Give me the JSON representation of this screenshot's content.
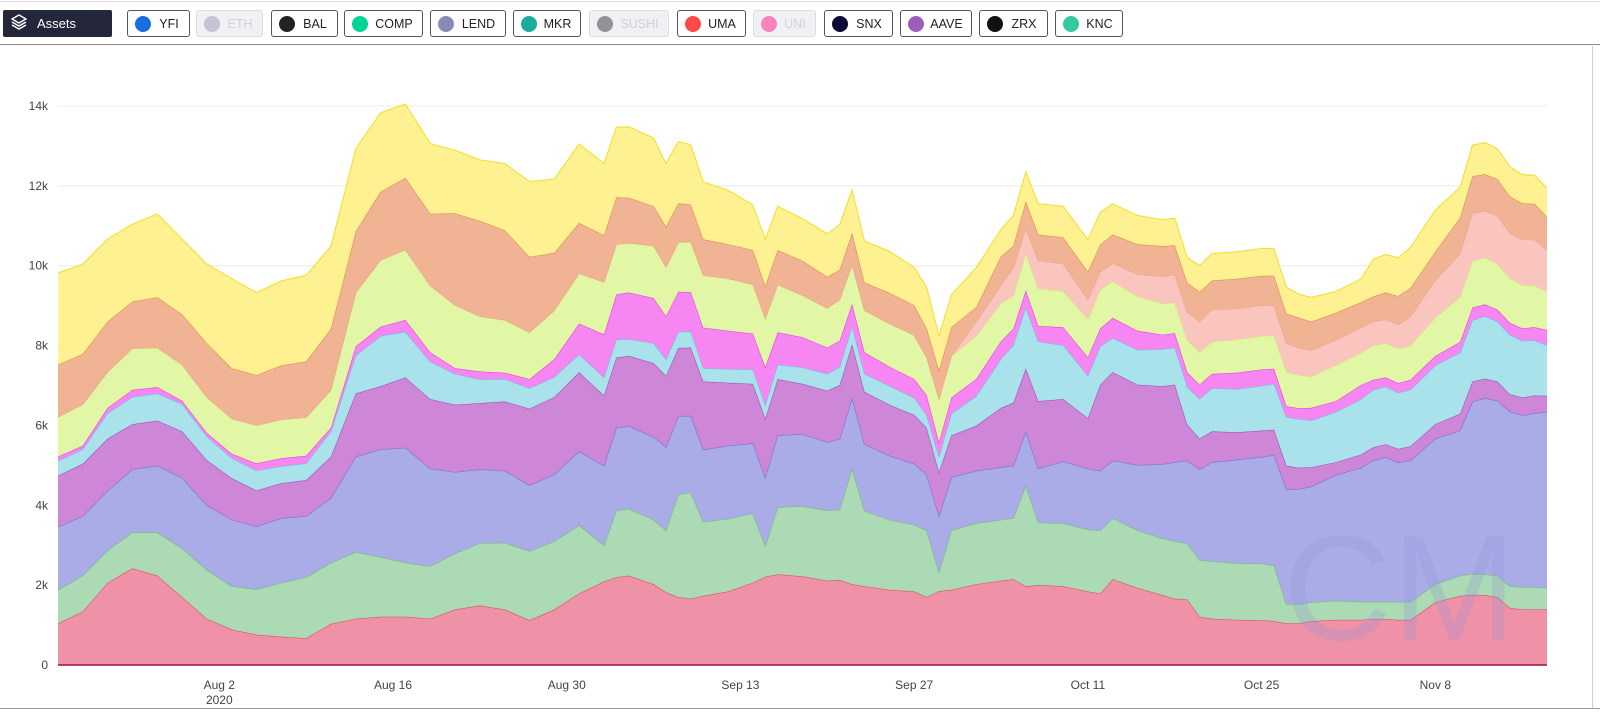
{
  "toolbar": {
    "assets_label": "Assets",
    "assets_icon": "layers-icon",
    "buttons": [
      {
        "label": "YFI",
        "active": true,
        "icon": "yfi-icon",
        "color": "#1a6de0"
      },
      {
        "label": "ETH",
        "active": false,
        "icon": "eth-icon",
        "color": "#8c8cb0"
      },
      {
        "label": "BAL",
        "active": true,
        "icon": "bal-icon",
        "color": "#222222"
      },
      {
        "label": "COMP",
        "active": true,
        "icon": "comp-icon",
        "color": "#00d395"
      },
      {
        "label": "LEND",
        "active": true,
        "icon": "lend-icon",
        "color": "#8a8ab8"
      },
      {
        "label": "MKR",
        "active": true,
        "icon": "mkr-icon",
        "color": "#1aab9b"
      },
      {
        "label": "SUSHI",
        "active": false,
        "icon": "sushi-icon",
        "color": "#222222"
      },
      {
        "label": "UMA",
        "active": true,
        "icon": "uma-icon",
        "color": "#ff4a4a"
      },
      {
        "label": "UNI",
        "active": false,
        "icon": "uni-icon",
        "color": "#ff007a"
      },
      {
        "label": "SNX",
        "active": true,
        "icon": "snx-icon",
        "color": "#0b0b3a"
      },
      {
        "label": "AAVE",
        "active": true,
        "icon": "aave-icon",
        "color": "#9b5fb8"
      },
      {
        "label": "ZRX",
        "active": true,
        "icon": "zrx-icon",
        "color": "#111111"
      },
      {
        "label": "KNC",
        "active": true,
        "icon": "knc-icon",
        "color": "#31cb9e"
      }
    ]
  },
  "watermark": "CM",
  "chart_data": {
    "type": "area",
    "stacked": true,
    "title": "",
    "xlabel": "",
    "ylabel": "",
    "ylim": [
      0,
      14000
    ],
    "xlim": [
      "2020-07-20",
      "2020-11-17"
    ],
    "grid": true,
    "legend": "none",
    "y_ticks": [
      {
        "value": 0,
        "label": "0"
      },
      {
        "value": 2000,
        "label": "2k"
      },
      {
        "value": 4000,
        "label": "4k"
      },
      {
        "value": 6000,
        "label": "6k"
      },
      {
        "value": 8000,
        "label": "8k"
      },
      {
        "value": 10000,
        "label": "10k"
      },
      {
        "value": 12000,
        "label": "12k"
      },
      {
        "value": 14000,
        "label": "14k"
      }
    ],
    "x_ticks": [
      {
        "date": "2020-08-02",
        "label": "Aug 2",
        "sublabel": "2020"
      },
      {
        "date": "2020-08-16",
        "label": "Aug 16"
      },
      {
        "date": "2020-08-30",
        "label": "Aug 30"
      },
      {
        "date": "2020-09-13",
        "label": "Sep 13"
      },
      {
        "date": "2020-09-27",
        "label": "Sep 27"
      },
      {
        "date": "2020-10-11",
        "label": "Oct 11"
      },
      {
        "date": "2020-10-25",
        "label": "Oct 25"
      },
      {
        "date": "2020-11-08",
        "label": "Nov 8"
      }
    ],
    "x": [
      "2020-07-20",
      "2020-07-22",
      "2020-07-24",
      "2020-07-26",
      "2020-07-28",
      "2020-07-30",
      "2020-08-01",
      "2020-08-03",
      "2020-08-05",
      "2020-08-07",
      "2020-08-09",
      "2020-08-11",
      "2020-08-13",
      "2020-08-15",
      "2020-08-17",
      "2020-08-19",
      "2020-08-21",
      "2020-08-23",
      "2020-08-25",
      "2020-08-27",
      "2020-08-29",
      "2020-08-31",
      "2020-09-02",
      "2020-09-03",
      "2020-09-04",
      "2020-09-06",
      "2020-09-07",
      "2020-09-08",
      "2020-09-09",
      "2020-09-10",
      "2020-09-12",
      "2020-09-14",
      "2020-09-15",
      "2020-09-16",
      "2020-09-18",
      "2020-09-20",
      "2020-09-21",
      "2020-09-22",
      "2020-09-23",
      "2020-09-25",
      "2020-09-27",
      "2020-09-28",
      "2020-09-29",
      "2020-09-30",
      "2020-10-02",
      "2020-10-04",
      "2020-10-05",
      "2020-10-06",
      "2020-10-07",
      "2020-10-09",
      "2020-10-11",
      "2020-10-12",
      "2020-10-13",
      "2020-10-15",
      "2020-10-17",
      "2020-10-18",
      "2020-10-19",
      "2020-10-20",
      "2020-10-21",
      "2020-10-23",
      "2020-10-25",
      "2020-10-26",
      "2020-10-27",
      "2020-10-28",
      "2020-10-29",
      "2020-10-31",
      "2020-11-02",
      "2020-11-03",
      "2020-11-04",
      "2020-11-05",
      "2020-11-06",
      "2020-11-08",
      "2020-11-10",
      "2020-11-11",
      "2020-11-12",
      "2020-11-13",
      "2020-11-14",
      "2020-11-15",
      "2020-11-16",
      "2020-11-17"
    ],
    "series": [
      {
        "color": "#ee8ca2",
        "stroke": "#d63050",
        "values": [
          1040,
          1340,
          2060,
          2420,
          2240,
          1700,
          1160,
          890,
          760,
          710,
          670,
          1030,
          1160,
          1210,
          1210,
          1160,
          1390,
          1490,
          1390,
          1120,
          1390,
          1790,
          2090,
          2200,
          2240,
          2020,
          1820,
          1700,
          1660,
          1730,
          1840,
          2060,
          2210,
          2270,
          2220,
          2110,
          2130,
          2020,
          1970,
          1880,
          1840,
          1700,
          1850,
          1880,
          2020,
          2110,
          2150,
          1970,
          2000,
          1970,
          1840,
          1790,
          2150,
          1930,
          1750,
          1660,
          1640,
          1210,
          1160,
          1130,
          1120,
          1100,
          1040,
          1040,
          1100,
          1130,
          1130,
          1150,
          1150,
          1130,
          1130,
          1570,
          1730,
          1760,
          1750,
          1700,
          1430,
          1390,
          1390,
          1390
        ]
      },
      {
        "color": "#a8d8b0",
        "stroke": "#5cb860",
        "values": [
          840,
          900,
          810,
          900,
          1080,
          1220,
          1220,
          1080,
          1130,
          1350,
          1530,
          1530,
          1670,
          1490,
          1350,
          1310,
          1400,
          1560,
          1670,
          1730,
          1710,
          1710,
          900,
          1670,
          1670,
          1620,
          1550,
          2570,
          2660,
          1860,
          1820,
          1740,
          770,
          1680,
          1760,
          1760,
          1760,
          2900,
          1890,
          1760,
          1670,
          1670,
          480,
          1490,
          1530,
          1530,
          1530,
          2520,
          1570,
          1580,
          1550,
          1580,
          1530,
          1440,
          1420,
          1440,
          1410,
          1420,
          1440,
          1420,
          1420,
          1390,
          480,
          480,
          470,
          480,
          450,
          430,
          430,
          450,
          450,
          450,
          510,
          520,
          520,
          540,
          540,
          560,
          560,
          540
        ]
      },
      {
        "color": "#a5a8e6",
        "stroke": "#5a60d8",
        "values": [
          1580,
          1490,
          1490,
          1580,
          1670,
          1760,
          1620,
          1670,
          1580,
          1620,
          1530,
          1620,
          2390,
          2700,
          2880,
          2450,
          2040,
          1850,
          1800,
          1650,
          1670,
          1850,
          2000,
          2070,
          2070,
          2070,
          2090,
          1960,
          1920,
          1800,
          1830,
          1750,
          1710,
          1800,
          1800,
          1710,
          1770,
          1760,
          1670,
          1600,
          1530,
          1400,
          1400,
          1330,
          1310,
          1310,
          1310,
          1350,
          1350,
          1550,
          1530,
          1490,
          1440,
          1640,
          1860,
          1980,
          2070,
          2270,
          2480,
          2590,
          2670,
          2770,
          2880,
          2880,
          2900,
          3150,
          3360,
          3540,
          3630,
          3490,
          3540,
          3650,
          3630,
          4320,
          4410,
          4380,
          4380,
          4300,
          4350,
          4410
        ]
      },
      {
        "color": "#cb80d4",
        "stroke": "#9830b0",
        "values": [
          1280,
          1310,
          1310,
          1130,
          1130,
          1170,
          1130,
          1040,
          900,
          870,
          900,
          1040,
          1580,
          1580,
          1760,
          1740,
          1690,
          1660,
          1740,
          1920,
          1940,
          1980,
          1760,
          1760,
          1760,
          1850,
          1780,
          1710,
          1710,
          1710,
          1580,
          1490,
          1480,
          1410,
          1260,
          1290,
          1350,
          1350,
          1310,
          1280,
          1220,
          1170,
          1100,
          1050,
          1130,
          1490,
          1580,
          1580,
          1690,
          1560,
          1260,
          2160,
          2210,
          2010,
          1950,
          1940,
          900,
          770,
          770,
          690,
          660,
          630,
          590,
          540,
          480,
          320,
          330,
          330,
          320,
          340,
          360,
          360,
          420,
          500,
          490,
          480,
          430,
          450,
          450,
          400
        ]
      },
      {
        "color": "#a4e0ea",
        "stroke": "#50c8dc",
        "values": [
          370,
          360,
          630,
          680,
          680,
          680,
          590,
          500,
          500,
          430,
          420,
          630,
          950,
          1260,
          1140,
          930,
          770,
          590,
          560,
          510,
          500,
          450,
          450,
          450,
          420,
          500,
          410,
          400,
          400,
          330,
          340,
          360,
          340,
          360,
          410,
          420,
          450,
          450,
          450,
          470,
          430,
          320,
          390,
          540,
          740,
          1220,
          1440,
          1530,
          1490,
          1350,
          1060,
          960,
          860,
          870,
          930,
          930,
          950,
          990,
          1080,
          1080,
          1120,
          1150,
          1220,
          1220,
          1170,
          1260,
          1380,
          1440,
          1440,
          1410,
          1410,
          1470,
          1530,
          1530,
          1560,
          1500,
          1490,
          1420,
          1380,
          1260
        ]
      },
      {
        "color": "#f580f0",
        "stroke": "#e020e0",
        "values": [
          110,
          90,
          140,
          180,
          160,
          90,
          90,
          110,
          180,
          200,
          190,
          90,
          230,
          230,
          300,
          240,
          140,
          200,
          160,
          230,
          450,
          770,
          1080,
          1130,
          1170,
          1130,
          1080,
          1010,
          990,
          1020,
          960,
          900,
          950,
          810,
          760,
          660,
          660,
          560,
          540,
          480,
          470,
          500,
          360,
          410,
          430,
          450,
          410,
          430,
          390,
          450,
          470,
          450,
          500,
          480,
          360,
          360,
          360,
          360,
          360,
          410,
          410,
          380,
          270,
          270,
          320,
          270,
          360,
          250,
          230,
          240,
          250,
          240,
          270,
          320,
          300,
          300,
          300,
          310,
          330,
          390
        ]
      },
      {
        "color": "#e0f7a0",
        "stroke": "#c8ec60",
        "values": [
          990,
          1040,
          900,
          1040,
          990,
          900,
          900,
          880,
          950,
          970,
          960,
          950,
          1350,
          1670,
          1760,
          1670,
          1580,
          1380,
          1320,
          1170,
          1220,
          1260,
          1310,
          1260,
          1240,
          1310,
          1240,
          1240,
          1260,
          1310,
          1310,
          1230,
          1220,
          1200,
          1050,
          990,
          1030,
          990,
          1050,
          1080,
          1100,
          950,
          1080,
          1040,
          1080,
          950,
          830,
          920,
          940,
          900,
          950,
          970,
          920,
          860,
          780,
          760,
          810,
          810,
          810,
          830,
          840,
          830,
          860,
          830,
          780,
          900,
          810,
          860,
          860,
          860,
          860,
          960,
          1130,
          1170,
          1170,
          1140,
          1120,
          1080,
          1040,
          960
        ]
      },
      {
        "color": "#fbc2bc",
        "stroke": "#f09890",
        "values": [
          0,
          0,
          0,
          0,
          0,
          0,
          0,
          0,
          0,
          0,
          0,
          0,
          0,
          0,
          0,
          0,
          0,
          0,
          0,
          0,
          0,
          0,
          0,
          0,
          0,
          0,
          0,
          0,
          0,
          0,
          0,
          0,
          0,
          0,
          0,
          0,
          0,
          0,
          0,
          0,
          0,
          0,
          0,
          0,
          360,
          450,
          700,
          630,
          700,
          690,
          490,
          450,
          450,
          560,
          680,
          700,
          700,
          770,
          810,
          770,
          770,
          750,
          720,
          680,
          660,
          630,
          630,
          600,
          590,
          600,
          720,
          930,
          1080,
          1190,
          1170,
          1200,
          1130,
          1150,
          1150,
          1040
        ]
      },
      {
        "color": "#efb08e",
        "stroke": "#e07030",
        "values": [
          1310,
          1260,
          1260,
          1170,
          1260,
          1260,
          1350,
          1260,
          1260,
          1350,
          1400,
          1530,
          1530,
          1710,
          1800,
          1800,
          2300,
          2390,
          2250,
          1890,
          1440,
          1260,
          1170,
          1170,
          1130,
          990,
          1010,
          970,
          930,
          900,
          860,
          860,
          810,
          860,
          860,
          780,
          750,
          790,
          700,
          770,
          750,
          720,
          720,
          720,
          360,
          720,
          540,
          680,
          650,
          660,
          700,
          680,
          720,
          750,
          760,
          740,
          740,
          740,
          720,
          750,
          740,
          750,
          740,
          760,
          720,
          680,
          630,
          630,
          680,
          720,
          720,
          720,
          900,
          930,
          920,
          930,
          920,
          900,
          900,
          830
        ]
      },
      {
        "color": "#fdf08c",
        "stroke": "#f0d800",
        "values": [
          2300,
          2250,
          2070,
          1940,
          2090,
          1890,
          1980,
          2250,
          2070,
          2120,
          2160,
          2070,
          2070,
          1980,
          1850,
          1760,
          1580,
          1530,
          1670,
          1890,
          1850,
          1980,
          1800,
          1760,
          1780,
          1710,
          1580,
          1550,
          1500,
          1440,
          1350,
          1130,
          1170,
          1100,
          1060,
          1080,
          1130,
          1080,
          1040,
          1040,
          950,
          1040,
          860,
          810,
          990,
          680,
          770,
          750,
          770,
          780,
          810,
          810,
          770,
          720,
          660,
          680,
          630,
          660,
          680,
          680,
          680,
          680,
          660,
          590,
          610,
          540,
          590,
          930,
          950,
          960,
          1020,
          1040,
          770,
          780,
          790,
          760,
          740,
          720,
          720,
          720
        ]
      }
    ]
  }
}
